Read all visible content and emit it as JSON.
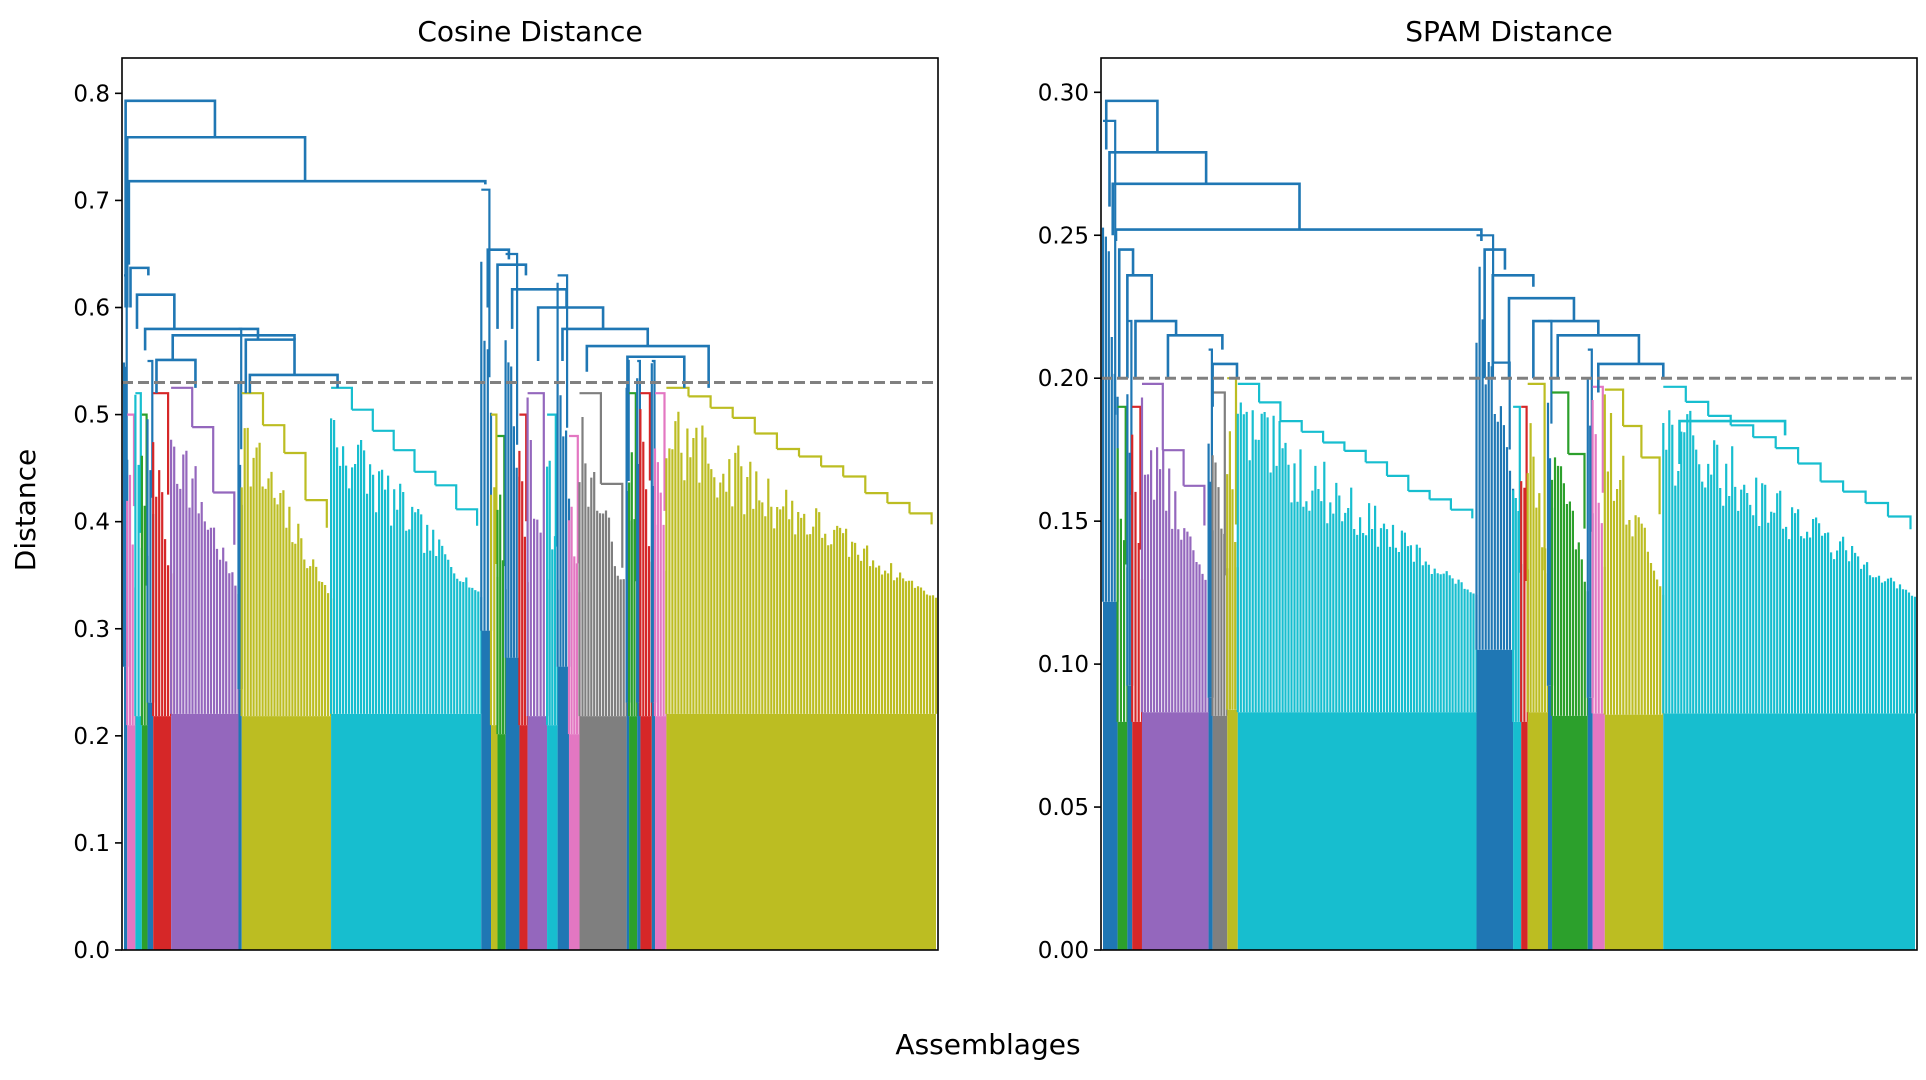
{
  "figure": {
    "xlabel": "Assemblages",
    "ylabel": "Distance"
  },
  "colors": {
    "C0": "#1f77b4",
    "C2": "#2ca02c",
    "C3": "#d62728",
    "C4": "#9467bd",
    "C6": "#e377c2",
    "C7": "#7f7f7f",
    "C8": "#bcbd22",
    "C9": "#17becf",
    "threshold": "#808080"
  },
  "chart_data": [
    {
      "type": "dendrogram",
      "title": "Cosine Distance",
      "xlabel": "Assemblages",
      "ylabel": "Distance",
      "ylim": [
        0,
        0.833
      ],
      "yticks": [
        0.0,
        0.1,
        0.2,
        0.3,
        0.4,
        0.5,
        0.6,
        0.7,
        0.8
      ],
      "tick_labels": [
        "0.0",
        "0.1",
        "0.2",
        "0.3",
        "0.4",
        "0.5",
        "0.6",
        "0.7",
        "0.8"
      ],
      "threshold": 0.53,
      "leaf_range": [
        0,
        1000
      ],
      "clusters": [
        {
          "color": "C0",
          "start": 0,
          "end": 4,
          "top": 0.63
        },
        {
          "color": "C6",
          "start": 4,
          "end": 14,
          "top": 0.5
        },
        {
          "color": "C9",
          "start": 14,
          "end": 22,
          "top": 0.52
        },
        {
          "color": "C2",
          "start": 22,
          "end": 29,
          "top": 0.5
        },
        {
          "color": "C0",
          "start": 29,
          "end": 36,
          "top": 0.55
        },
        {
          "color": "C3",
          "start": 36,
          "end": 58,
          "top": 0.52
        },
        {
          "color": "C4",
          "start": 58,
          "end": 141,
          "top": 0.525
        },
        {
          "color": "C0",
          "start": 141,
          "end": 145,
          "top": 0.58
        },
        {
          "color": "C8",
          "start": 145,
          "end": 255,
          "top": 0.52
        },
        {
          "color": "C9",
          "start": 255,
          "end": 440,
          "top": 0.525
        },
        {
          "color": "C0",
          "start": 440,
          "end": 452,
          "top": 0.71
        },
        {
          "color": "C8",
          "start": 452,
          "end": 460,
          "top": 0.5
        },
        {
          "color": "C2",
          "start": 460,
          "end": 470,
          "top": 0.48
        },
        {
          "color": "C0",
          "start": 470,
          "end": 487,
          "top": 0.65
        },
        {
          "color": "C3",
          "start": 487,
          "end": 497,
          "top": 0.5
        },
        {
          "color": "C4",
          "start": 497,
          "end": 521,
          "top": 0.52
        },
        {
          "color": "C9",
          "start": 521,
          "end": 534,
          "top": 0.5
        },
        {
          "color": "C0",
          "start": 534,
          "end": 548,
          "top": 0.63
        },
        {
          "color": "C6",
          "start": 548,
          "end": 561,
          "top": 0.48
        },
        {
          "color": "C7",
          "start": 561,
          "end": 619,
          "top": 0.52
        },
        {
          "color": "C0",
          "start": 619,
          "end": 622,
          "top": 0.55
        },
        {
          "color": "C2",
          "start": 622,
          "end": 632,
          "top": 0.52
        },
        {
          "color": "C0",
          "start": 632,
          "end": 636,
          "top": 0.55
        },
        {
          "color": "C3",
          "start": 636,
          "end": 650,
          "top": 0.52
        },
        {
          "color": "C0",
          "start": 650,
          "end": 654,
          "top": 0.55
        },
        {
          "color": "C6",
          "start": 654,
          "end": 668,
          "top": 0.52
        },
        {
          "color": "C8",
          "start": 668,
          "end": 1000,
          "top": 0.525
        }
      ],
      "links": [
        {
          "color": "C0",
          "x1": 2,
          "x2": 112,
          "height": 0.793,
          "left_top": 0.6,
          "right_top": 0.759
        },
        {
          "color": "C0",
          "x1": 4,
          "x2": 223,
          "height": 0.759,
          "left_top": 0.6,
          "right_top": 0.718
        },
        {
          "color": "C0",
          "x1": 6,
          "x2": 445,
          "height": 0.718,
          "left_top": 0.64,
          "right_top": 0.715
        },
        {
          "color": "C0",
          "x1": 8,
          "x2": 30,
          "height": 0.637,
          "left_top": 0.6,
          "right_top": 0.63
        },
        {
          "color": "C0",
          "x1": 16,
          "x2": 62,
          "height": 0.612,
          "left_top": 0.58,
          "right_top": 0.58
        },
        {
          "color": "C0",
          "x1": 26,
          "x2": 165,
          "height": 0.58,
          "left_top": 0.56,
          "right_top": 0.57
        },
        {
          "color": "C0",
          "x1": 60,
          "x2": 210,
          "height": 0.574,
          "left_top": 0.55,
          "right_top": 0.57
        },
        {
          "color": "C0",
          "x1": 150,
          "x2": 210,
          "height": 0.57,
          "left_top": 0.52,
          "right_top": 0.537
        },
        {
          "color": "C0",
          "x1": 155,
          "x2": 263,
          "height": 0.537,
          "left_top": 0.52,
          "right_top": 0.525
        },
        {
          "color": "C0",
          "x1": 40,
          "x2": 88,
          "height": 0.551,
          "left_top": 0.52,
          "right_top": 0.525
        },
        {
          "color": "C0",
          "x1": 448,
          "x2": 474,
          "height": 0.654,
          "left_top": 0.6,
          "right_top": 0.645
        },
        {
          "color": "C0",
          "x1": 460,
          "x2": 495,
          "height": 0.64,
          "left_top": 0.58,
          "right_top": 0.63
        },
        {
          "color": "C0",
          "x1": 478,
          "x2": 545,
          "height": 0.617,
          "left_top": 0.58,
          "right_top": 0.6
        },
        {
          "color": "C0",
          "x1": 510,
          "x2": 590,
          "height": 0.6,
          "left_top": 0.55,
          "right_top": 0.58
        },
        {
          "color": "C0",
          "x1": 540,
          "x2": 645,
          "height": 0.58,
          "left_top": 0.55,
          "right_top": 0.564
        },
        {
          "color": "C0",
          "x1": 570,
          "x2": 720,
          "height": 0.564,
          "left_top": 0.54,
          "right_top": 0.525
        },
        {
          "color": "C0",
          "x1": 620,
          "x2": 690,
          "height": 0.554,
          "left_top": 0.48,
          "right_top": 0.525
        }
      ]
    },
    {
      "type": "dendrogram",
      "title": "SPAM Distance",
      "xlabel": "Assemblages",
      "ylabel": "Distance",
      "ylim": [
        0,
        0.312
      ],
      "yticks": [
        0.0,
        0.05,
        0.1,
        0.15,
        0.2,
        0.25,
        0.3
      ],
      "tick_labels": [
        "0.00",
        "0.05",
        "0.10",
        "0.15",
        "0.20",
        "0.25",
        "0.30"
      ],
      "threshold": 0.2,
      "leaf_range": [
        0,
        1000
      ],
      "clusters": [
        {
          "color": "C0",
          "start": 0,
          "end": 18,
          "top": 0.29
        },
        {
          "color": "C2",
          "start": 18,
          "end": 30,
          "top": 0.19
        },
        {
          "color": "C0",
          "start": 30,
          "end": 36,
          "top": 0.22
        },
        {
          "color": "C3",
          "start": 36,
          "end": 48,
          "top": 0.19
        },
        {
          "color": "C4",
          "start": 48,
          "end": 130,
          "top": 0.198
        },
        {
          "color": "C0",
          "start": 130,
          "end": 135,
          "top": 0.21
        },
        {
          "color": "C7",
          "start": 135,
          "end": 153,
          "top": 0.195
        },
        {
          "color": "C8",
          "start": 153,
          "end": 166,
          "top": 0.2
        },
        {
          "color": "C9",
          "start": 166,
          "end": 460,
          "top": 0.198
        },
        {
          "color": "C0",
          "start": 460,
          "end": 505,
          "top": 0.25
        },
        {
          "color": "C9",
          "start": 505,
          "end": 515,
          "top": 0.19
        },
        {
          "color": "C3",
          "start": 515,
          "end": 523,
          "top": 0.19
        },
        {
          "color": "C8",
          "start": 523,
          "end": 548,
          "top": 0.198
        },
        {
          "color": "C0",
          "start": 548,
          "end": 553,
          "top": 0.22
        },
        {
          "color": "C2",
          "start": 553,
          "end": 597,
          "top": 0.195
        },
        {
          "color": "C0",
          "start": 597,
          "end": 603,
          "top": 0.21
        },
        {
          "color": "C6",
          "start": 603,
          "end": 618,
          "top": 0.197
        },
        {
          "color": "C8",
          "start": 618,
          "end": 690,
          "top": 0.196
        },
        {
          "color": "C9",
          "start": 690,
          "end": 1000,
          "top": 0.197
        }
      ],
      "links": [
        {
          "color": "C0",
          "x1": 4,
          "x2": 67,
          "height": 0.297,
          "left_top": 0.28,
          "right_top": 0.279
        },
        {
          "color": "C0",
          "x1": 8,
          "x2": 127,
          "height": 0.279,
          "left_top": 0.26,
          "right_top": 0.268
        },
        {
          "color": "C0",
          "x1": 12,
          "x2": 242,
          "height": 0.268,
          "left_top": 0.25,
          "right_top": 0.252
        },
        {
          "color": "C0",
          "x1": 16,
          "x2": 466,
          "height": 0.252,
          "left_top": 0.248,
          "right_top": 0.248
        },
        {
          "color": "C0",
          "x1": 20,
          "x2": 37,
          "height": 0.245,
          "left_top": 0.2,
          "right_top": 0.236
        },
        {
          "color": "C0",
          "x1": 30,
          "x2": 60,
          "height": 0.236,
          "left_top": 0.2,
          "right_top": 0.22
        },
        {
          "color": "C0",
          "x1": 40,
          "x2": 90,
          "height": 0.22,
          "left_top": 0.2,
          "right_top": 0.215
        },
        {
          "color": "C0",
          "x1": 80,
          "x2": 147,
          "height": 0.215,
          "left_top": 0.2,
          "right_top": 0.21
        },
        {
          "color": "C0",
          "x1": 135,
          "x2": 165,
          "height": 0.205,
          "left_top": 0.19,
          "right_top": 0.2
        },
        {
          "color": "C0",
          "x1": 470,
          "x2": 495,
          "height": 0.245,
          "left_top": 0.2,
          "right_top": 0.238
        },
        {
          "color": "C0",
          "x1": 480,
          "x2": 530,
          "height": 0.236,
          "left_top": 0.2,
          "right_top": 0.232
        },
        {
          "color": "C0",
          "x1": 500,
          "x2": 580,
          "height": 0.228,
          "left_top": 0.2,
          "right_top": 0.22
        },
        {
          "color": "C0",
          "x1": 530,
          "x2": 610,
          "height": 0.22,
          "left_top": 0.2,
          "right_top": 0.215
        },
        {
          "color": "C0",
          "x1": 560,
          "x2": 660,
          "height": 0.215,
          "left_top": 0.2,
          "right_top": 0.205
        },
        {
          "color": "C0",
          "x1": 610,
          "x2": 690,
          "height": 0.205,
          "left_top": 0.195,
          "right_top": 0.2
        },
        {
          "color": "C9",
          "x1": 710,
          "x2": 840,
          "height": 0.185,
          "left_top": 0.17,
          "right_top": 0.18
        }
      ]
    }
  ]
}
